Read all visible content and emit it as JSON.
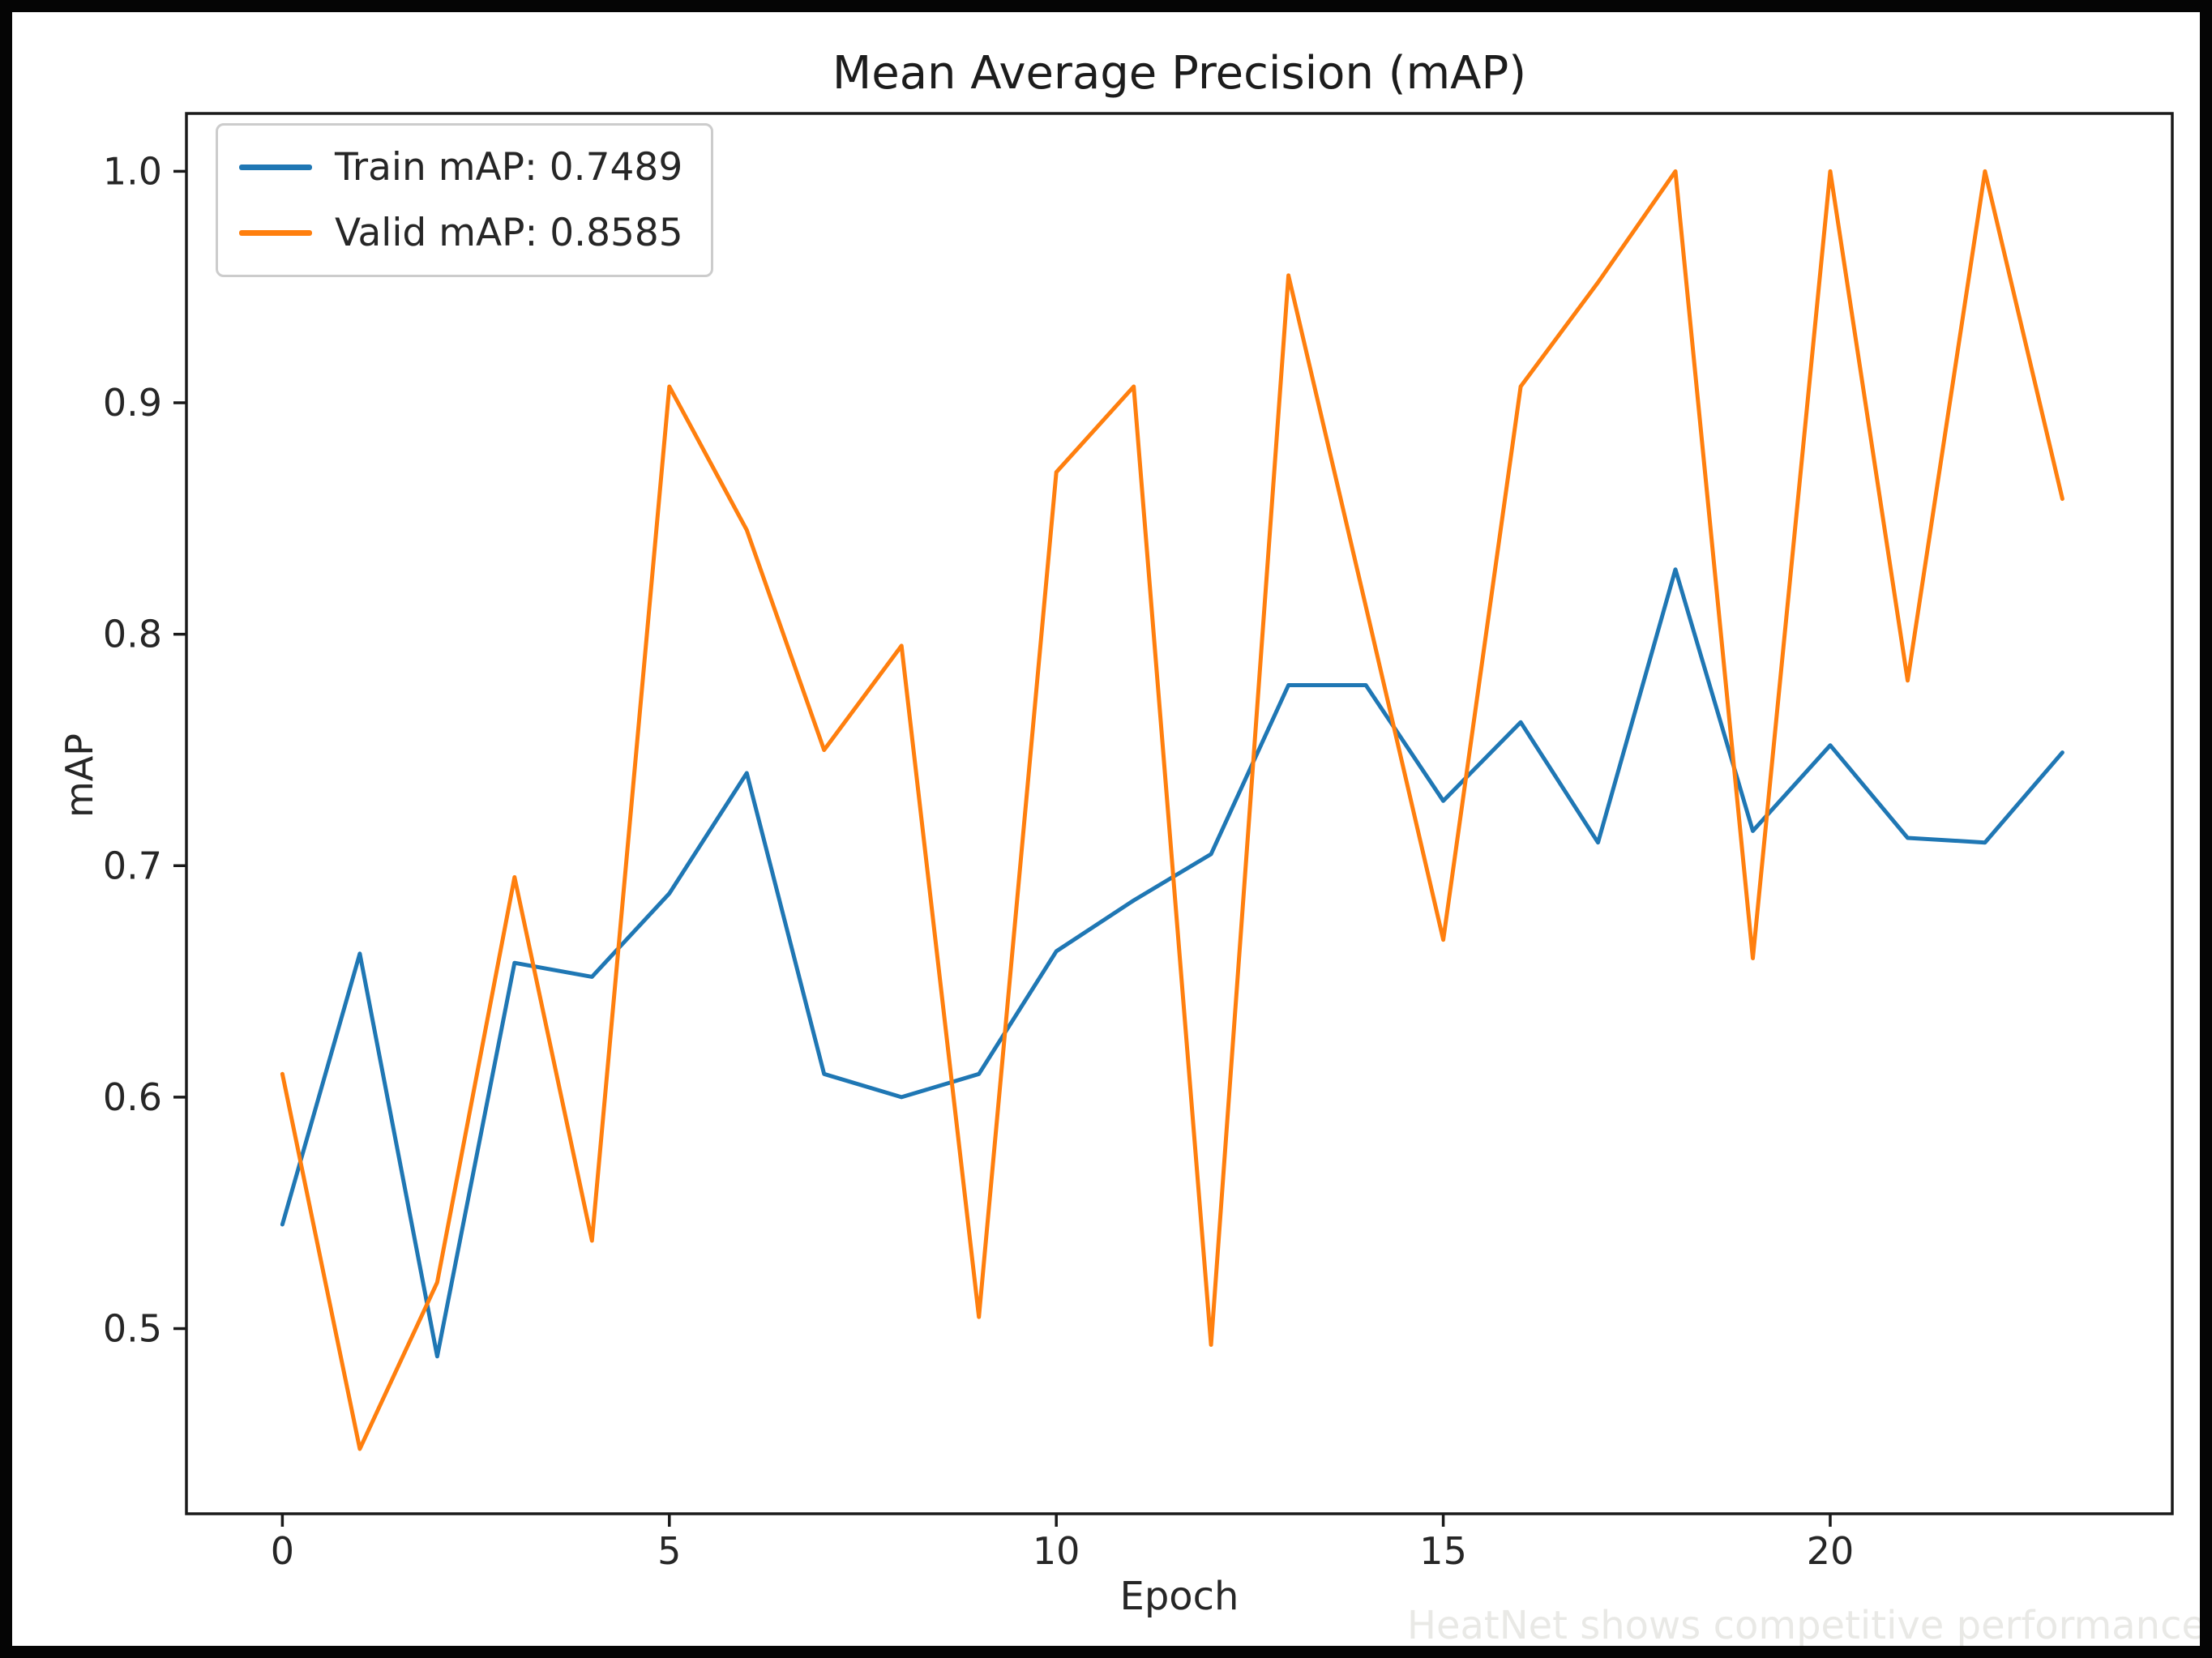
{
  "title": "Mean Average Precision (mAP)",
  "axes": {
    "xlabel": "Epoch",
    "ylabel": "mAP"
  },
  "legend": {
    "items": [
      {
        "label": "Train mAP: 0.7489",
        "color": "#1f77b4"
      },
      {
        "label": "Valid mAP: 0.8585",
        "color": "#ff7f0e"
      }
    ]
  },
  "watermark": "HeatNet shows competitive performance",
  "colors": {
    "train_line": "#1f77b4",
    "valid_line": "#ff7f0e",
    "axes_spine": "#1a1a1a",
    "tick_label": "#262626",
    "legend_border": "#cccccc",
    "outer_frame": "#050505",
    "background": "#ffffff"
  },
  "chart_data": {
    "type": "line",
    "title": "Mean Average Precision (mAP)",
    "xlabel": "Epoch",
    "ylabel": "mAP",
    "grid": false,
    "legend_position": "upper left",
    "x": [
      0,
      1,
      2,
      3,
      4,
      5,
      6,
      7,
      8,
      9,
      10,
      11,
      12,
      13,
      14,
      15,
      16,
      17,
      18,
      19,
      20,
      21,
      22,
      23
    ],
    "x_ticks": [
      0,
      5,
      10,
      15,
      20
    ],
    "y_ticks": [
      0.5,
      0.6,
      0.7,
      0.8,
      0.9,
      1.0
    ],
    "xlim": [
      -1.24,
      24.42
    ],
    "ylim": [
      0.42,
      1.025
    ],
    "series": [
      {
        "name": "Train mAP: 0.7489",
        "color": "#1f77b4",
        "final_value": 0.7489,
        "values": [
          0.545,
          0.662,
          0.488,
          0.658,
          0.652,
          0.688,
          0.74,
          0.61,
          0.6,
          0.61,
          0.663,
          0.685,
          0.705,
          0.778,
          0.778,
          0.728,
          0.762,
          0.71,
          0.828,
          0.715,
          0.752,
          0.712,
          0.71,
          0.7489
        ]
      },
      {
        "name": "Valid mAP: 0.8585",
        "color": "#ff7f0e",
        "final_value": 0.8585,
        "values": [
          0.61,
          0.448,
          0.52,
          0.695,
          0.538,
          0.907,
          0.845,
          0.75,
          0.795,
          0.505,
          0.87,
          0.907,
          0.493,
          0.955,
          0.812,
          0.668,
          0.907,
          0.952,
          1.0,
          0.66,
          1.0,
          0.78,
          1.0,
          0.8585
        ]
      }
    ]
  }
}
